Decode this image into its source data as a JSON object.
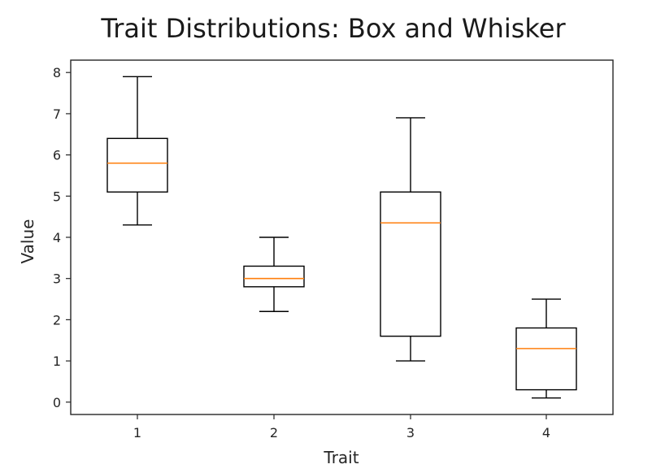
{
  "chart_data": {
    "type": "box",
    "title": "Trait Distributions: Box and Whisker",
    "xlabel": "Trait",
    "ylabel": "Value",
    "ylim": [
      -0.3,
      8.3
    ],
    "yticks": [
      0,
      1,
      2,
      3,
      4,
      5,
      6,
      7,
      8
    ],
    "grid": false,
    "categories": [
      "1",
      "2",
      "3",
      "4"
    ],
    "boxes": [
      {
        "category": "1",
        "whisker_low": 4.3,
        "q1": 5.1,
        "median": 5.8,
        "q3": 6.4,
        "whisker_high": 7.9
      },
      {
        "category": "2",
        "whisker_low": 2.2,
        "q1": 2.8,
        "median": 3.0,
        "q3": 3.3,
        "whisker_high": 4.0
      },
      {
        "category": "3",
        "whisker_low": 1.0,
        "q1": 1.6,
        "median": 4.35,
        "q3": 5.1,
        "whisker_high": 6.9
      },
      {
        "category": "4",
        "whisker_low": 0.1,
        "q1": 0.3,
        "median": 1.3,
        "q3": 1.8,
        "whisker_high": 2.5
      }
    ],
    "colors": {
      "box": "#000000",
      "median": "#ff7f0e",
      "axis": "#262626"
    }
  }
}
